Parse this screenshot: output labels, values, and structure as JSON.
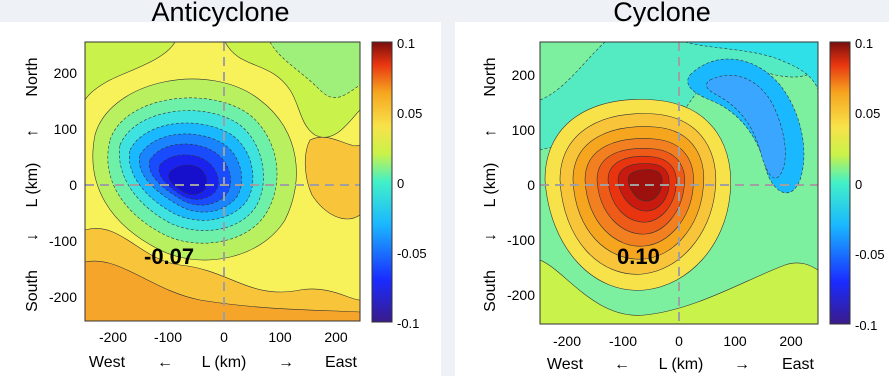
{
  "chart_data": [
    {
      "type": "heatmap",
      "title": "Anticyclone",
      "xlabel": {
        "left": "West",
        "arrow_left": "←",
        "center": "L (km)",
        "arrow_right": "→",
        "right": "East"
      },
      "ylabel": {
        "bottom": "South",
        "arrow_down": "↓",
        "center": "L (km)",
        "arrow_up": "↑",
        "top": "North"
      },
      "xlim": [
        -250,
        250
      ],
      "ylim": [
        -250,
        250
      ],
      "x_ticks": [
        "-200",
        "-100",
        "0",
        "100",
        "200"
      ],
      "y_ticks": [
        "200",
        "100",
        "0",
        "-100",
        "-200"
      ],
      "colorbar": {
        "min": -0.1,
        "max": 0.1,
        "ticks": [
          "0.1",
          "0.05",
          "0",
          "-0.05",
          "-0.1"
        ]
      },
      "center_value": -0.07,
      "annotation": "-0.07",
      "extremum_location_km": [
        -60,
        -40
      ]
    },
    {
      "type": "heatmap",
      "title": "Cyclone",
      "xlabel": {
        "left": "West",
        "arrow_left": "←",
        "center": "L (km)",
        "arrow_right": "→",
        "right": "East"
      },
      "ylabel": {
        "bottom": "South",
        "arrow_down": "↓",
        "center": "L (km)",
        "arrow_up": "↑",
        "top": "North"
      },
      "xlim": [
        -250,
        250
      ],
      "ylim": [
        -250,
        250
      ],
      "x_ticks": [
        "-200",
        "-100",
        "0",
        "100",
        "200"
      ],
      "y_ticks": [
        "200",
        "100",
        "0",
        "-100",
        "-200"
      ],
      "colorbar": {
        "min": -0.1,
        "max": 0.1,
        "ticks": [
          "0.1",
          "0.05",
          "0",
          "-0.05",
          "-0.1"
        ]
      },
      "center_value": 0.1,
      "annotation": "0.10",
      "extremum_location_km": [
        -50,
        10
      ]
    }
  ],
  "colors": {
    "jet_low": "#3a1b8a",
    "jet_mid": "#f7f25a",
    "jet_high": "#7a0d0d",
    "crosshair": "#a0a0a0",
    "page_background": "#eef1f6"
  }
}
